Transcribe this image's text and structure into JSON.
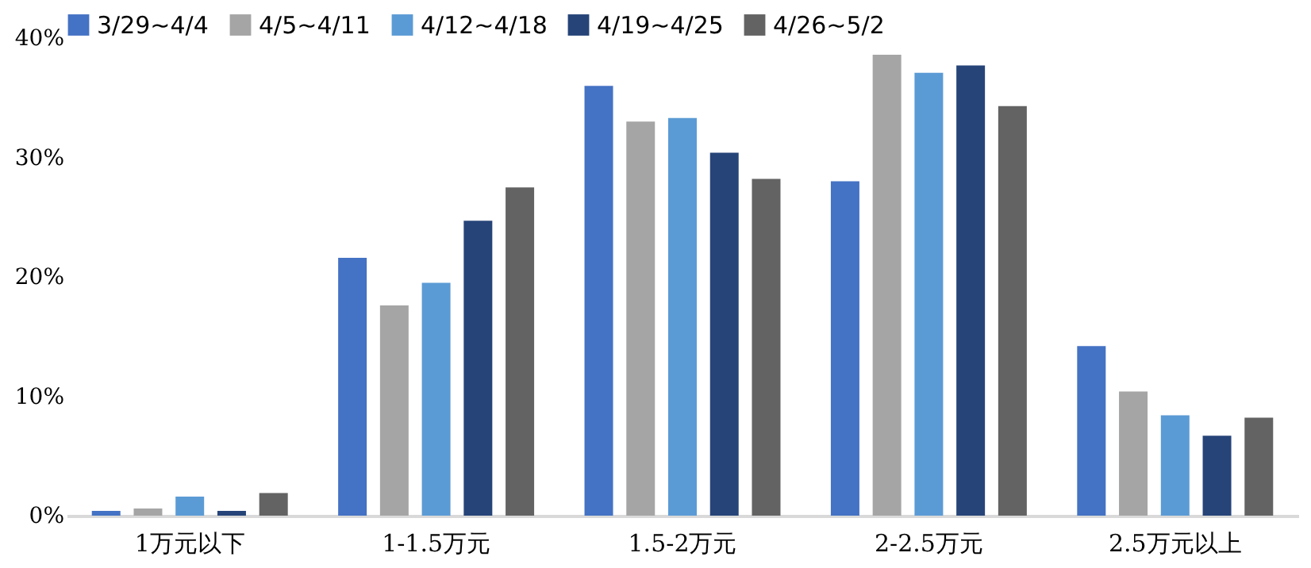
{
  "chart_data": {
    "type": "bar",
    "categories": [
      "1万元以下",
      "1-1.5万元",
      "1.5-2万元",
      "2-2.5万元",
      "2.5万元以上"
    ],
    "series": [
      {
        "name": "3/29~4/4",
        "color": "#4472c4",
        "values": [
          0.4,
          21.6,
          36.0,
          28.0,
          14.2
        ]
      },
      {
        "name": "4/5~4/11",
        "color": "#a5a5a5",
        "values": [
          0.6,
          17.6,
          33.0,
          38.6,
          10.4
        ]
      },
      {
        "name": "4/12~4/18",
        "color": "#5b9bd5",
        "values": [
          1.6,
          19.5,
          33.3,
          37.1,
          8.4
        ]
      },
      {
        "name": "4/19~4/25",
        "color": "#264478",
        "values": [
          0.4,
          24.7,
          30.4,
          37.7,
          6.7
        ]
      },
      {
        "name": "4/26~5/2",
        "color": "#636363",
        "values": [
          1.9,
          27.5,
          28.2,
          34.3,
          8.2
        ]
      }
    ],
    "ylim": [
      0,
      40
    ],
    "yticks": [
      {
        "value": 0,
        "label": "0%"
      },
      {
        "value": 10,
        "label": "10%"
      },
      {
        "value": 20,
        "label": "20%"
      },
      {
        "value": 30,
        "label": "30%"
      },
      {
        "value": 40,
        "label": "40%"
      }
    ],
    "grid": false,
    "legend": "top"
  }
}
